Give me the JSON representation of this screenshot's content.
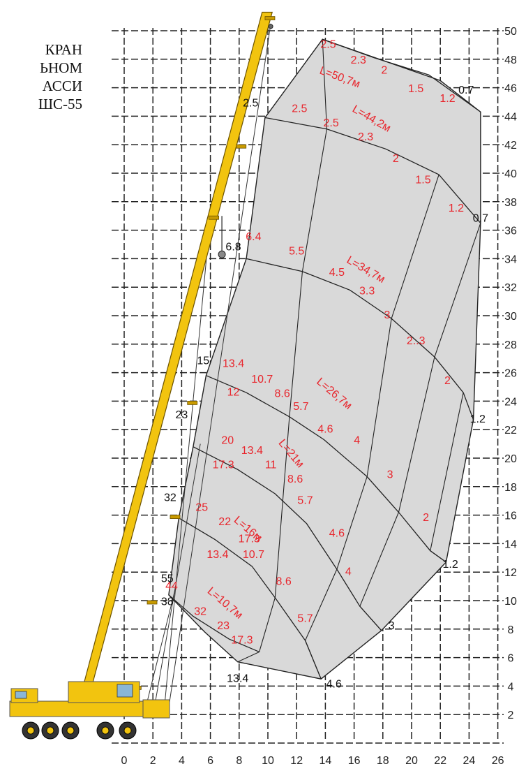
{
  "title_lines": [
    "КРАН",
    "ЬНОМ",
    "АССИ",
    "ШС-55"
  ],
  "chart_data": {
    "type": "load-chart",
    "xlim": [
      0,
      26
    ],
    "ylim": [
      0,
      50
    ],
    "x_ticks": [
      0,
      2,
      4,
      6,
      8,
      10,
      12,
      14,
      16,
      18,
      20,
      22,
      24,
      26
    ],
    "y_ticks": [
      2,
      4,
      6,
      8,
      10,
      12,
      14,
      16,
      18,
      20,
      22,
      24,
      26,
      28,
      30,
      32,
      34,
      36,
      38,
      40,
      42,
      44,
      46,
      48,
      50
    ],
    "grid": true,
    "colors": {
      "grid": "#222222",
      "area_fill": "#d9d9d9",
      "boom": "#f2c40f",
      "red_labels": "#e8262d"
    },
    "boom_lengths": [
      {
        "label": "L=10,7м",
        "x": 7,
        "y": 9.8,
        "angle": 40
      },
      {
        "label": "L=16м",
        "x": 8.6,
        "y": 15,
        "angle": 40
      },
      {
        "label": "L=21м",
        "x": 11.6,
        "y": 20.3,
        "angle": 50
      },
      {
        "label": "L=26,7м",
        "x": 14.6,
        "y": 24.5,
        "angle": 40
      },
      {
        "label": "L=34,7м",
        "x": 16.8,
        "y": 33.2,
        "angle": 30
      },
      {
        "label": "L=44,2м",
        "x": 17.2,
        "y": 43.8,
        "angle": 30
      },
      {
        "label": "L=50,7м",
        "x": 15,
        "y": 46.7,
        "angle": 20
      }
    ],
    "capacities_red": [
      {
        "t": "44",
        "x": 3.3,
        "y": 11
      },
      {
        "t": "32",
        "x": 5.3,
        "y": 9.2
      },
      {
        "t": "23",
        "x": 6.9,
        "y": 8.2
      },
      {
        "t": "17.3",
        "x": 8.2,
        "y": 7.2
      },
      {
        "t": "25",
        "x": 5.4,
        "y": 16.5
      },
      {
        "t": "22",
        "x": 7,
        "y": 15.5
      },
      {
        "t": "17.3",
        "x": 8.7,
        "y": 14.3
      },
      {
        "t": "13.4",
        "x": 6.5,
        "y": 13.2
      },
      {
        "t": "10.7",
        "x": 9,
        "y": 13.2
      },
      {
        "t": "8.6",
        "x": 11.1,
        "y": 11.3
      },
      {
        "t": "5.7",
        "x": 12.6,
        "y": 8.7
      },
      {
        "t": "20",
        "x": 7.2,
        "y": 21.2
      },
      {
        "t": "13.4",
        "x": 8.9,
        "y": 20.5
      },
      {
        "t": "17.3",
        "x": 6.9,
        "y": 19.5
      },
      {
        "t": "11",
        "x": 10.2,
        "y": 19.5
      },
      {
        "t": "8.6",
        "x": 11.9,
        "y": 18.5
      },
      {
        "t": "5.7",
        "x": 12.6,
        "y": 17
      },
      {
        "t": "4.6",
        "x": 14.8,
        "y": 14.7
      },
      {
        "t": "4",
        "x": 15.6,
        "y": 12
      },
      {
        "t": "13.4",
        "x": 7.6,
        "y": 26.6
      },
      {
        "t": "12",
        "x": 7.6,
        "y": 24.6
      },
      {
        "t": "10.7",
        "x": 9.6,
        "y": 25.5
      },
      {
        "t": "8.6",
        "x": 11,
        "y": 24.5
      },
      {
        "t": "5.7",
        "x": 12.3,
        "y": 23.6
      },
      {
        "t": "4.6",
        "x": 14,
        "y": 22
      },
      {
        "t": "4",
        "x": 16.2,
        "y": 21.2
      },
      {
        "t": "3",
        "x": 18.5,
        "y": 18.8
      },
      {
        "t": "2",
        "x": 21,
        "y": 15.8
      },
      {
        "t": "6.4",
        "x": 9,
        "y": 35.5
      },
      {
        "t": "5.5",
        "x": 12,
        "y": 34.5
      },
      {
        "t": "4.5",
        "x": 14.8,
        "y": 33
      },
      {
        "t": "3.3",
        "x": 16.9,
        "y": 31.7
      },
      {
        "t": "3",
        "x": 18.3,
        "y": 30
      },
      {
        "t": "2..3",
        "x": 20.3,
        "y": 28.2
      },
      {
        "t": "2",
        "x": 22.5,
        "y": 25.4
      },
      {
        "t": "2.5",
        "x": 12.2,
        "y": 44.5
      },
      {
        "t": "2.5",
        "x": 14.4,
        "y": 43.5
      },
      {
        "t": "2.3",
        "x": 16.8,
        "y": 42.5
      },
      {
        "t": "2",
        "x": 18.9,
        "y": 41
      },
      {
        "t": "1.5",
        "x": 20.8,
        "y": 39.5
      },
      {
        "t": "1.2",
        "x": 23.1,
        "y": 37.5
      },
      {
        "t": "2.5",
        "x": 14.2,
        "y": 49
      },
      {
        "t": "2.3",
        "x": 16.3,
        "y": 47.9
      },
      {
        "t": "2",
        "x": 18.1,
        "y": 47.2
      },
      {
        "t": "1.5",
        "x": 20.3,
        "y": 45.9
      },
      {
        "t": "1.2",
        "x": 22.5,
        "y": 45.2
      }
    ],
    "capacities_black": [
      {
        "t": "55",
        "x": 3,
        "y": 11.5
      },
      {
        "t": "38",
        "x": 3,
        "y": 9.9
      },
      {
        "t": "13.4",
        "x": 7.9,
        "y": 4.5
      },
      {
        "t": "4.6",
        "x": 14.6,
        "y": 4.1
      },
      {
        "t": "3",
        "x": 18.6,
        "y": 8.2
      },
      {
        "t": "1.2",
        "x": 22.7,
        "y": 12.5
      },
      {
        "t": "32",
        "x": 3.2,
        "y": 17.2
      },
      {
        "t": "23",
        "x": 4,
        "y": 23
      },
      {
        "t": "15",
        "x": 5.5,
        "y": 26.8
      },
      {
        "t": "1.2",
        "x": 24.6,
        "y": 22.7
      },
      {
        "t": "6.8",
        "x": 7.6,
        "y": 34.8
      },
      {
        "t": "0.7",
        "x": 24.8,
        "y": 36.8
      },
      {
        "t": "2.5",
        "x": 8.8,
        "y": 44.9
      },
      {
        "t": "0.7",
        "x": 23.8,
        "y": 45.8
      }
    ]
  }
}
